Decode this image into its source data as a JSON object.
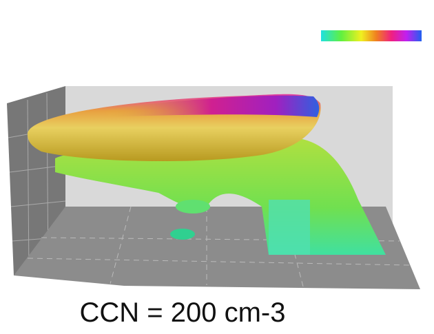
{
  "caption": "CCN = 200 cm-3"
}
